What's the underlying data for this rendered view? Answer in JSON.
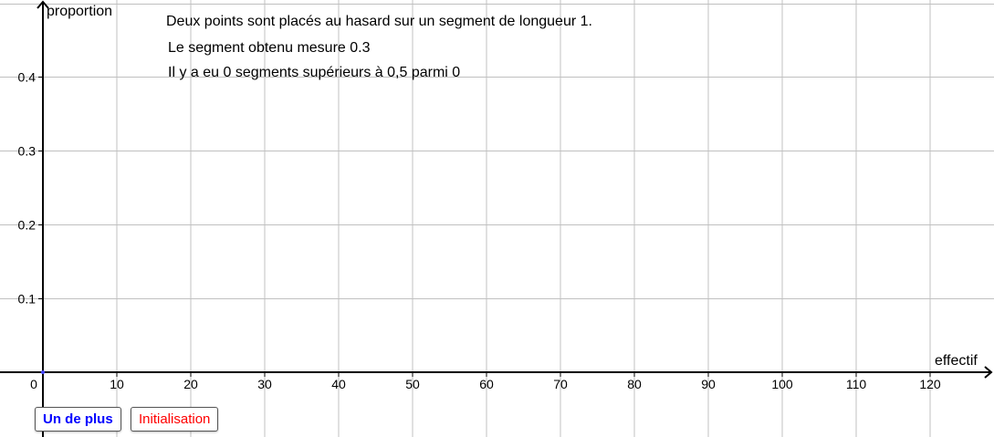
{
  "axes": {
    "x_label": "effectif",
    "y_label": "proportion",
    "origin_label": "0",
    "x_ticks": [
      "10",
      "20",
      "30",
      "40",
      "50",
      "60",
      "70",
      "80",
      "90",
      "100",
      "110",
      "120"
    ],
    "y_ticks": [
      "0.1",
      "0.2",
      "0.3",
      "0.4"
    ]
  },
  "texts": {
    "statement": "Deux points sont placés au hasard sur un segment de longueur 1.",
    "segment_result": "Le segment obtenu mesure 0.3",
    "count_result": "Il y a eu 0 segments supérieurs à 0,5 parmi 0"
  },
  "buttons": {
    "add_one": "Un de plus",
    "reset": "Initialisation"
  },
  "colors": {
    "add_one_text": "#0000ff",
    "reset_text": "#ff0000",
    "grid": "#c0c0c0",
    "axis": "#000000",
    "point": "#4444ff"
  },
  "chart_data": {
    "type": "scatter",
    "xlabel": "effectif",
    "ylabel": "proportion",
    "xlim": [
      -6,
      129
    ],
    "ylim": [
      -0.055,
      0.5
    ],
    "x_tick_step": 10,
    "y_tick_step": 0.1,
    "grid": true,
    "points": [
      {
        "x": 0,
        "y": 0
      }
    ]
  }
}
